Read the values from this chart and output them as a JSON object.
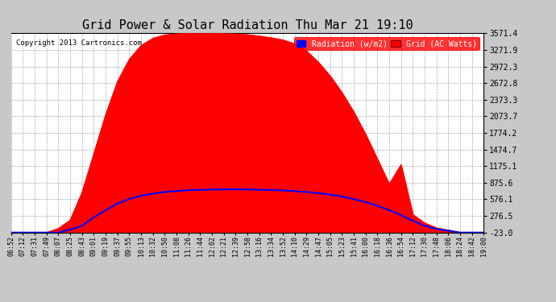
{
  "title": "Grid Power & Solar Radiation Thu Mar 21 19:10",
  "copyright": "Copyright 2013 Cartronics.com",
  "bg_color": "#c8c8c8",
  "plot_bg_color": "#ffffff",
  "yticks": [
    3571.4,
    3271.9,
    2972.3,
    2672.8,
    2373.3,
    2073.7,
    1774.2,
    1474.7,
    1175.1,
    875.6,
    576.1,
    276.5,
    -23.0
  ],
  "ymin": -23.0,
  "ymax": 3571.4,
  "radiation_color": "#ff0000",
  "grid_color": "#0000ff",
  "grid_line_color": "#aaaaaa",
  "title_fontsize": 11,
  "xtick_labels": [
    "06:52",
    "07:12",
    "07:31",
    "07:49",
    "08:07",
    "08:25",
    "08:43",
    "09:01",
    "09:19",
    "09:37",
    "09:55",
    "10:13",
    "10:32",
    "10:50",
    "11:08",
    "11:26",
    "11:44",
    "12:02",
    "12:21",
    "12:39",
    "12:58",
    "13:16",
    "13:34",
    "13:52",
    "14:10",
    "14:29",
    "14:47",
    "15:05",
    "15:23",
    "15:41",
    "16:00",
    "16:18",
    "16:36",
    "16:54",
    "17:12",
    "17:30",
    "17:48",
    "18:06",
    "18:24",
    "18:42",
    "19:00"
  ],
  "radiation_values": [
    -23,
    -23,
    -23,
    -23,
    50,
    200,
    700,
    1400,
    2100,
    2700,
    3100,
    3350,
    3480,
    3540,
    3560,
    3570,
    3571,
    3568,
    3565,
    3558,
    3545,
    3520,
    3490,
    3450,
    3380,
    3250,
    3050,
    2800,
    2500,
    2150,
    1750,
    1300,
    850,
    1200,
    300,
    150,
    60,
    20,
    -23,
    -23,
    -23
  ],
  "grid_watts_values": [
    -23,
    -23,
    -23,
    -23,
    -23,
    30,
    100,
    250,
    380,
    500,
    580,
    640,
    680,
    710,
    725,
    740,
    748,
    752,
    755,
    756,
    754,
    750,
    744,
    736,
    724,
    708,
    688,
    660,
    625,
    580,
    525,
    460,
    380,
    290,
    190,
    100,
    40,
    10,
    -23,
    -23,
    -23
  ]
}
